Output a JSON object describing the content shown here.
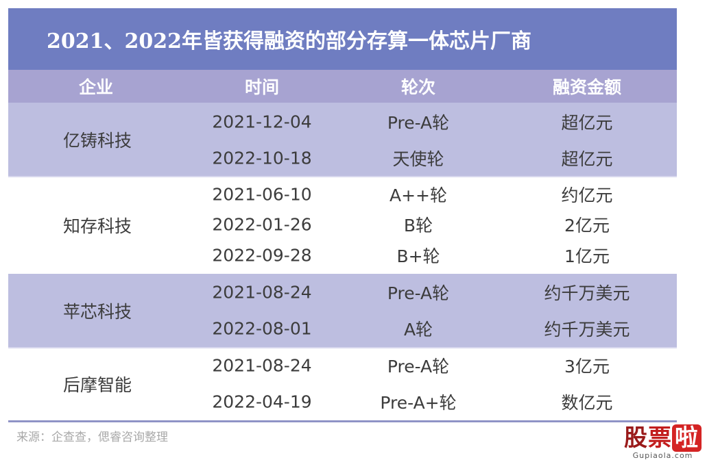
{
  "title": "2021、2022年皆获得融资的部分存算一体芯片厂商",
  "columns": [
    "企业",
    "时间",
    "轮次",
    "融资金额"
  ],
  "groups": [
    {
      "company": "亿铸科技",
      "rows": [
        {
          "date": "2021-12-04",
          "round": "Pre-A轮",
          "amount": "超亿元"
        },
        {
          "date": "2022-10-18",
          "round": "天使轮",
          "amount": "超亿元"
        }
      ]
    },
    {
      "company": "知存科技",
      "rows": [
        {
          "date": "2021-06-10",
          "round": "A++轮",
          "amount": "约亿元"
        },
        {
          "date": "2022-01-26",
          "round": "B轮",
          "amount": "2亿元"
        },
        {
          "date": "2022-09-28",
          "round": "B+轮",
          "amount": "1亿元"
        }
      ]
    },
    {
      "company": "苹芯科技",
      "rows": [
        {
          "date": "2021-08-24",
          "round": "Pre-A轮",
          "amount": "约千万美元"
        },
        {
          "date": "2022-08-01",
          "round": "A轮",
          "amount": "约千万美元"
        }
      ]
    },
    {
      "company": "后摩智能",
      "rows": [
        {
          "date": "2021-08-24",
          "round": "Pre-A轮",
          "amount": "3亿元"
        },
        {
          "date": "2022-04-19",
          "round": "Pre-A+轮",
          "amount": "数亿元"
        }
      ]
    }
  ],
  "source": "来源：企查查，偲睿咨询整理",
  "watermark": {
    "chars": [
      "股",
      "票",
      "啦"
    ],
    "url": "Gupiaola.com"
  },
  "colors": {
    "title_bg": "#6f7dc1",
    "header_bg": "#a7a3d1",
    "band": "#bdbee0"
  }
}
